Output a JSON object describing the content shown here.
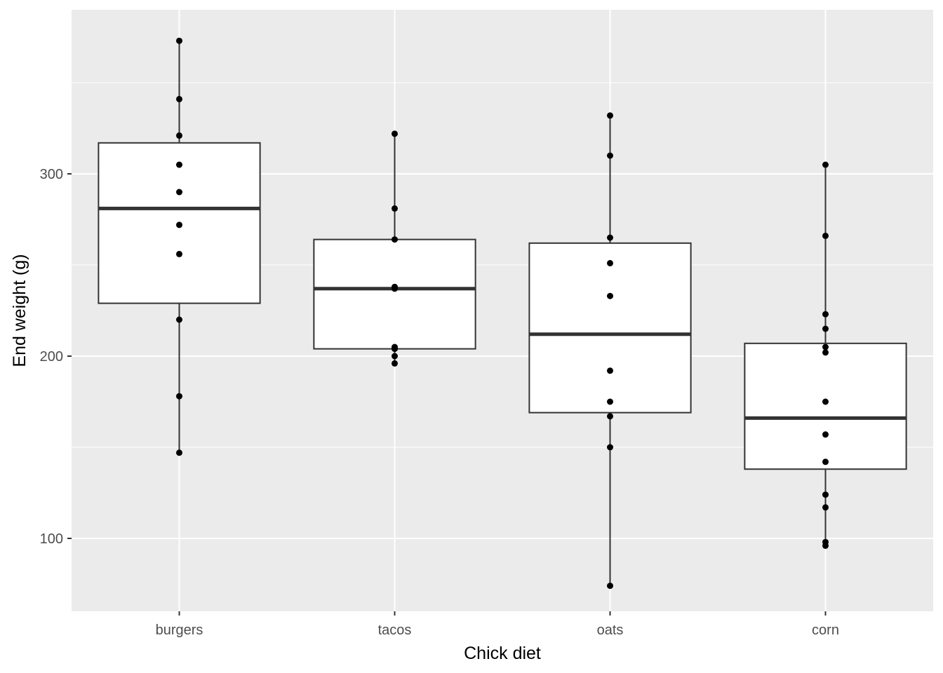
{
  "chart_data": {
    "type": "boxplot",
    "title": "",
    "xlabel": "Chick diet",
    "ylabel": "End weight (g)",
    "ylim": [
      60,
      390
    ],
    "y_ticks": [
      100,
      200,
      300
    ],
    "y_minor_ticks": [
      150,
      250,
      350
    ],
    "grid": true,
    "categories": [
      "burgers",
      "tacos",
      "oats",
      "corn"
    ],
    "boxes": [
      {
        "category": "burgers",
        "min": 147,
        "q1": 229,
        "median": 281,
        "q3": 317,
        "max": 373
      },
      {
        "category": "tacos",
        "min": 196,
        "q1": 204,
        "median": 237,
        "q3": 264,
        "max": 322
      },
      {
        "category": "oats",
        "min": 74,
        "q1": 169,
        "median": 212,
        "q3": 262,
        "max": 332
      },
      {
        "category": "corn",
        "min": 96,
        "q1": 138,
        "median": 166,
        "q3": 207,
        "max": 305
      }
    ],
    "points": [
      {
        "category": "burgers",
        "values": [
          373,
          341,
          321,
          305,
          290,
          272,
          256,
          220,
          178,
          147
        ]
      },
      {
        "category": "tacos",
        "values": [
          322,
          281,
          264,
          238,
          237,
          205,
          204,
          200,
          196
        ]
      },
      {
        "category": "oats",
        "values": [
          332,
          310,
          265,
          251,
          233,
          192,
          175,
          167,
          150,
          74
        ]
      },
      {
        "category": "corn",
        "values": [
          305,
          266,
          223,
          215,
          205,
          202,
          175,
          157,
          142,
          124,
          117,
          98,
          96
        ]
      }
    ],
    "colors": {
      "panel": "#ebebeb",
      "grid_major": "#ffffff",
      "box_fill": "#ffffff",
      "box_line": "#333333",
      "point": "#000000"
    }
  }
}
